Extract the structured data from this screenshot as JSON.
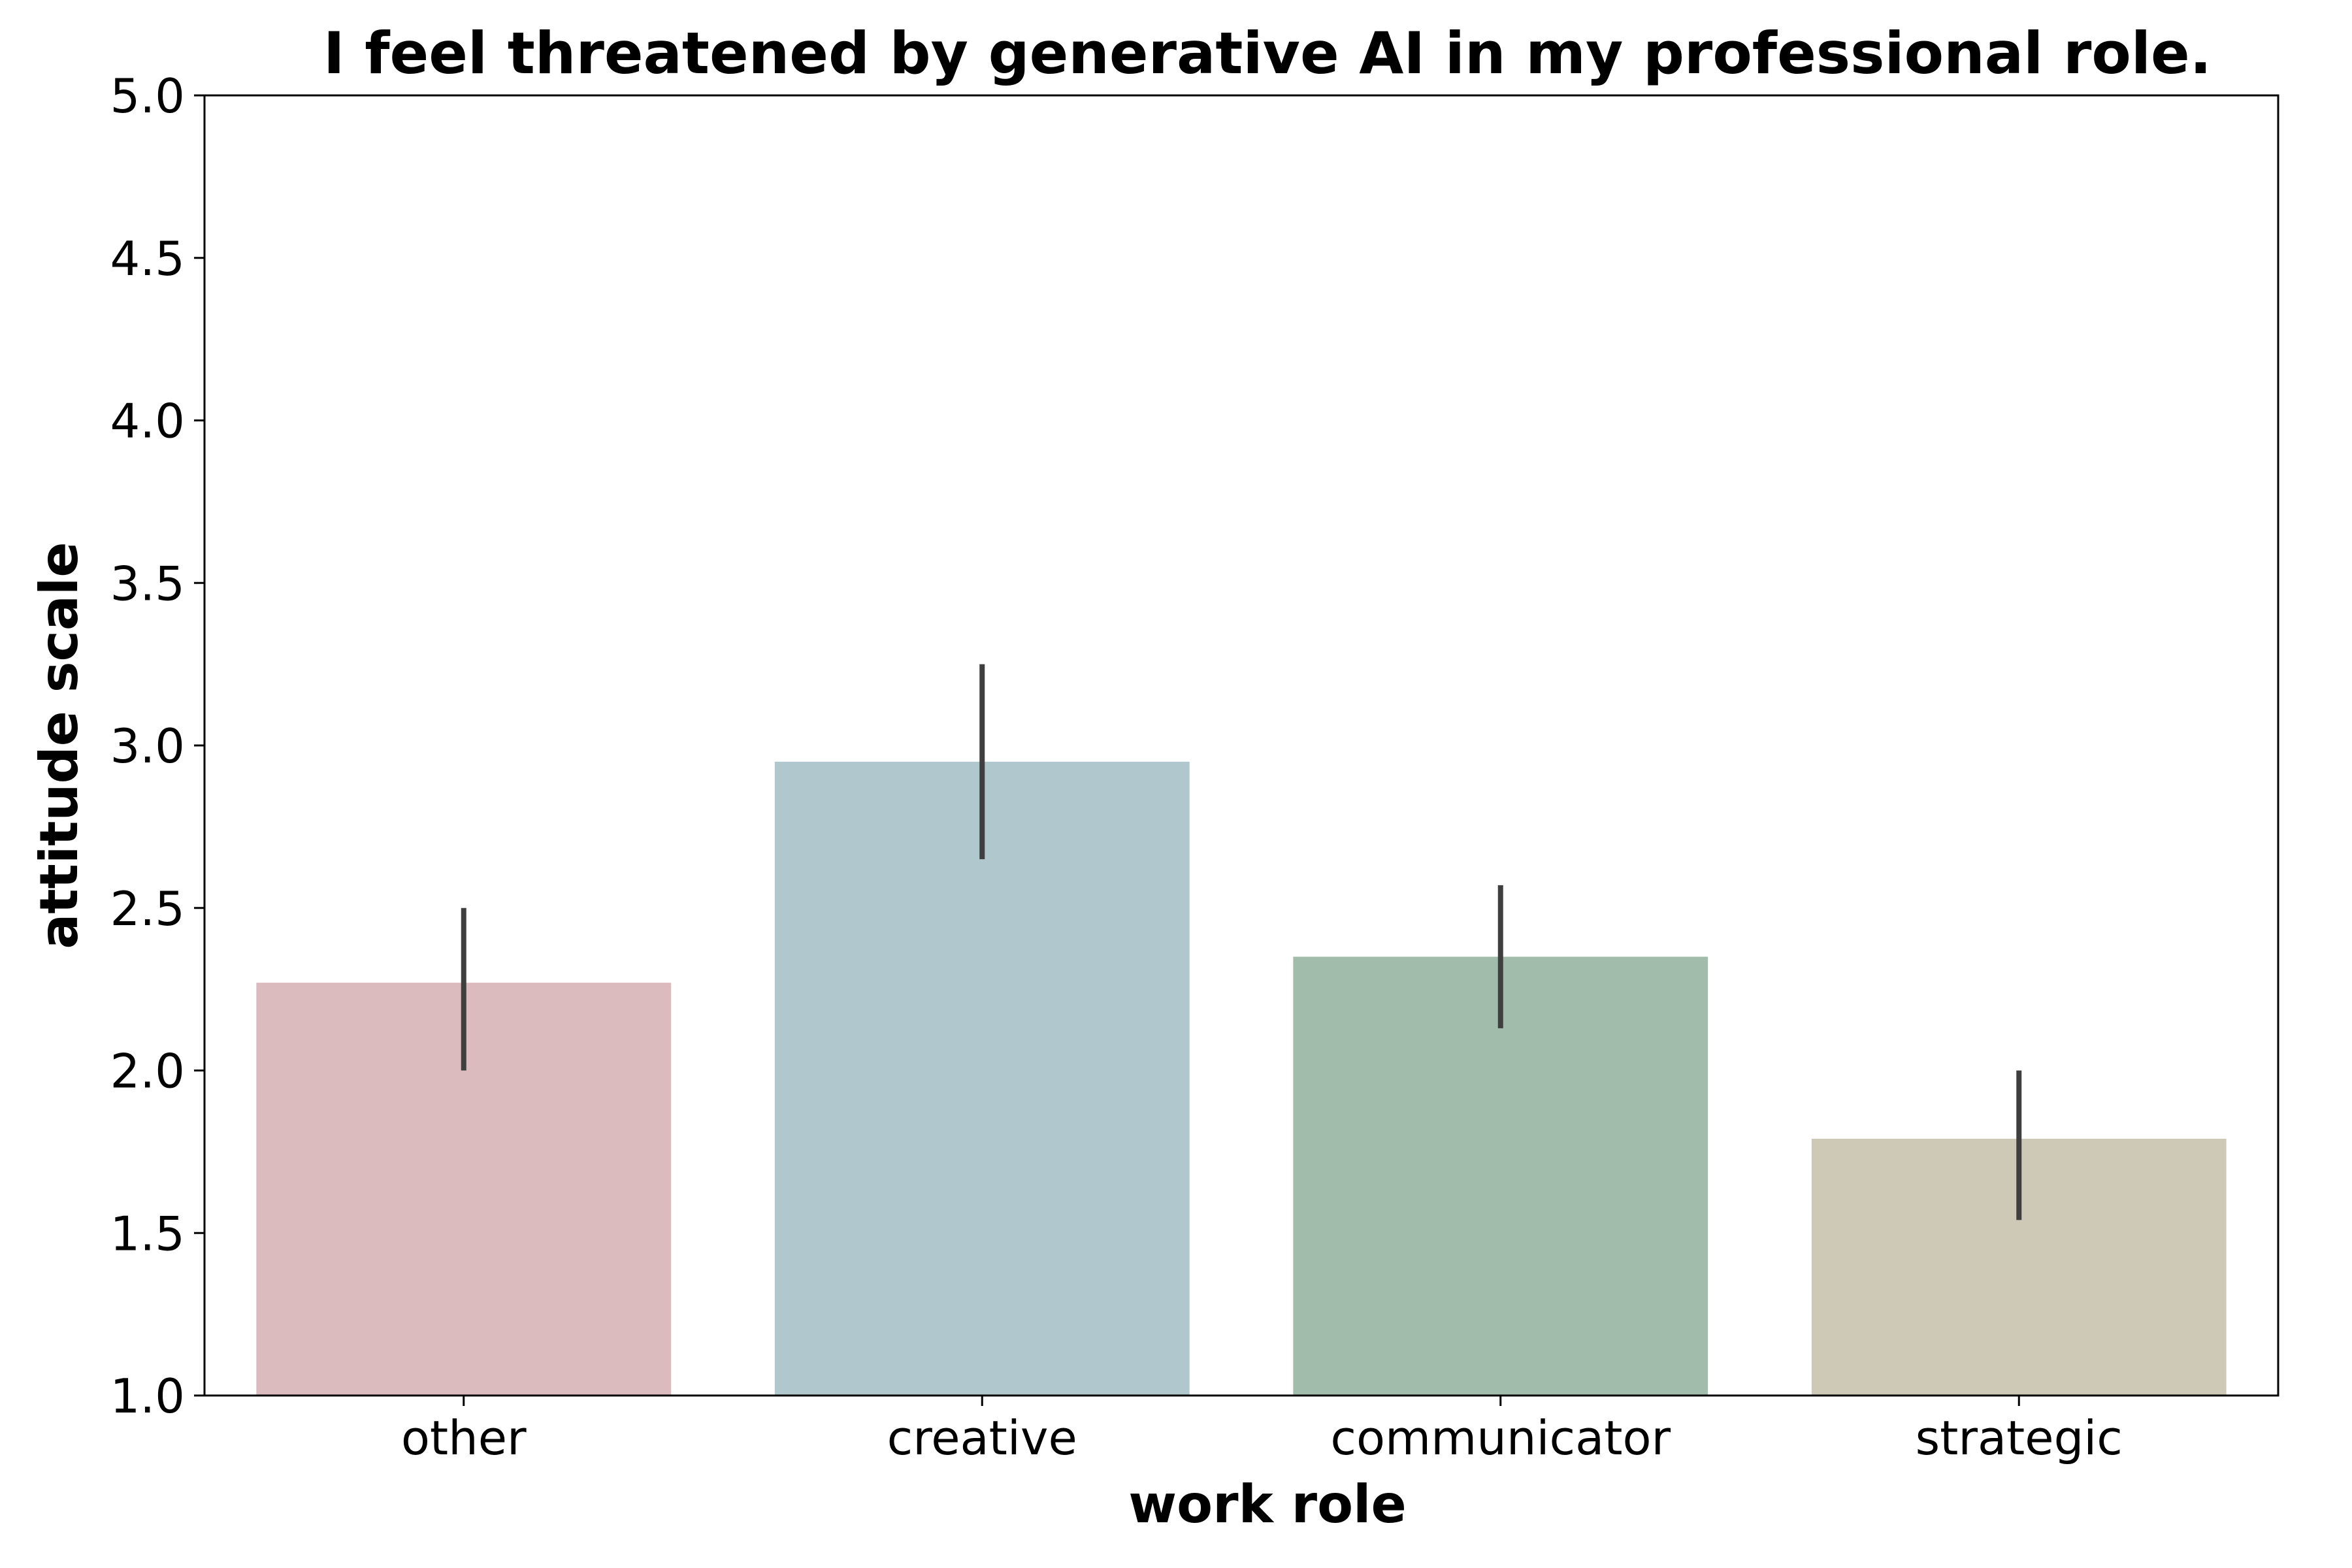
{
  "chart_data": {
    "type": "bar",
    "title": "I feel threatened by generative AI in my professional role.",
    "xlabel": "work role",
    "ylabel": "attitude scale",
    "categories": [
      "other",
      "creative",
      "communicator",
      "strategic"
    ],
    "values": [
      2.27,
      2.95,
      2.35,
      1.79
    ],
    "error_low": [
      2.0,
      2.65,
      2.13,
      1.54
    ],
    "error_high": [
      2.5,
      3.25,
      2.57,
      2.0
    ],
    "colors": [
      "#dcbbbf",
      "#b0c7ce",
      "#a2bcab",
      "#cdc9b6"
    ],
    "error_color": "#3f3f3f",
    "ylim": [
      1.0,
      5.0
    ],
    "yticks": [
      "1.0",
      "1.5",
      "2.0",
      "2.5",
      "3.0",
      "3.5",
      "4.0",
      "4.5",
      "5.0"
    ],
    "grid": false,
    "legend": "none"
  }
}
